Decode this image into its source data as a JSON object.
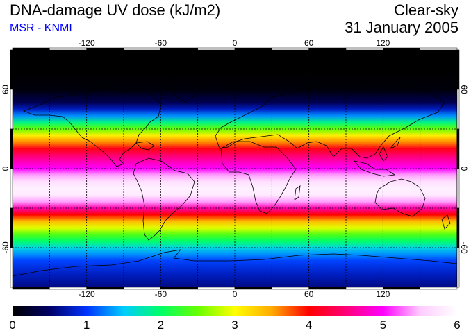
{
  "header": {
    "title": "DNA-damage UV dose (kJ/m2)",
    "source": "MSR - KNMI",
    "sky_condition": "Clear-sky",
    "date": "31 January 2005"
  },
  "map": {
    "lon_ticks": [
      -120,
      -60,
      0,
      60,
      120
    ],
    "lon_tick_labels": [
      "-120",
      "-60",
      "0",
      "60",
      "120"
    ],
    "lat_ticks": [
      60,
      0,
      -60
    ],
    "lat_tick_labels": [
      "60",
      "0",
      "-60"
    ],
    "lon_range": [
      -180,
      180
    ],
    "lat_range": [
      -90,
      90
    ]
  },
  "colorbar": {
    "min": 0,
    "max": 6,
    "tick_labels": [
      "0",
      "1",
      "2",
      "3",
      "4",
      "5",
      "6"
    ],
    "colors": [
      "#000000",
      "#000066",
      "#0033ff",
      "#00ccff",
      "#00ff66",
      "#66ff00",
      "#ffff00",
      "#ffaa00",
      "#ff0000",
      "#ff0077",
      "#ff00ff",
      "#ffccff",
      "#ffffff"
    ]
  },
  "uv_profile": {
    "lat": [
      90,
      75,
      60,
      50,
      45,
      40,
      35,
      30,
      25,
      20,
      15,
      10,
      5,
      0,
      -5,
      -10,
      -15,
      -20,
      -25,
      -30,
      -35,
      -40,
      -45,
      -50,
      -55,
      -60,
      -65,
      -70,
      -80,
      -90
    ],
    "dose": [
      0.0,
      0.0,
      0.05,
      0.4,
      0.8,
      1.3,
      1.9,
      2.5,
      3.1,
      3.6,
      4.1,
      4.45,
      4.75,
      5.0,
      5.4,
      5.7,
      5.85,
      5.8,
      5.4,
      4.7,
      4.0,
      3.4,
      2.9,
      2.4,
      2.0,
      1.6,
      1.3,
      1.05,
      0.8,
      0.6
    ]
  }
}
